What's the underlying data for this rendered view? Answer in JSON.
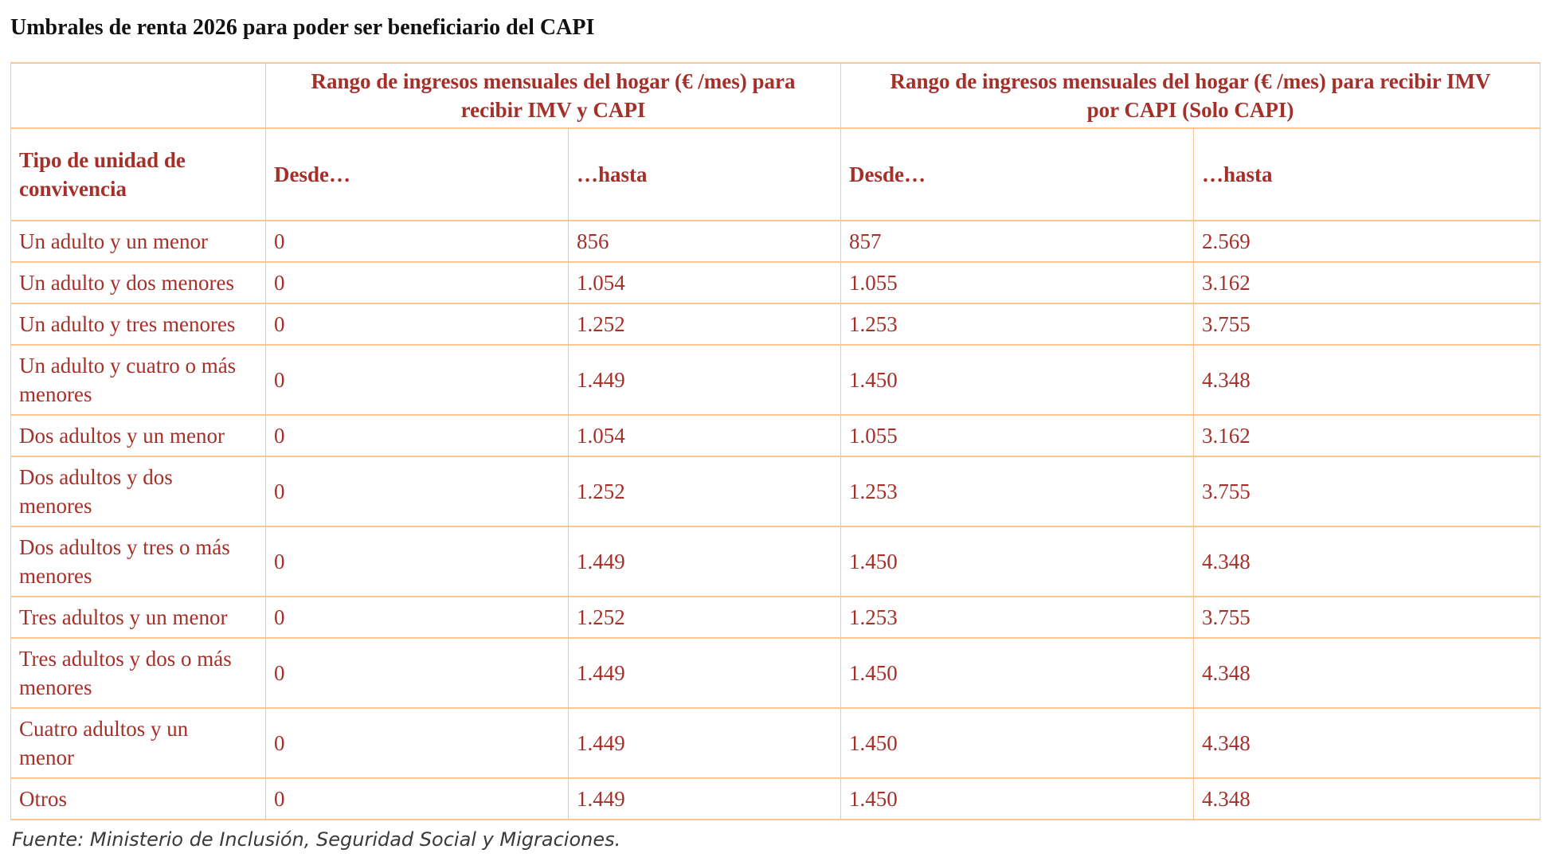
{
  "page": {
    "title": "Umbrales de renta 2026 para poder ser beneficiario del CAPI",
    "source_note": "Fuente: Ministerio de Inclusión, Seguridad Social y Migraciones."
  },
  "table": {
    "row_dimension_header": "Tipo de unidad de convivencia",
    "group_headers": {
      "imv_y_capi": "Rango de ingresos mensuales del hogar (€ /mes) para recibir IMV y CAPI",
      "solo_capi": "Rango de ingresos mensuales del hogar (€ /mes) para recibir IMV por CAPI (Solo CAPI)"
    },
    "sub_headers": {
      "desde_1": "Desde…",
      "hasta_1": "…hasta",
      "desde_2": "Desde…",
      "hasta_2": "…hasta"
    },
    "rows": [
      {
        "label": "Un adulto y un menor",
        "values": [
          "0",
          "856",
          "857",
          "2.569"
        ]
      },
      {
        "label": "Un adulto y dos menores",
        "values": [
          "0",
          "1.054",
          "1.055",
          "3.162"
        ]
      },
      {
        "label": "Un adulto y tres menores",
        "values": [
          "0",
          "1.252",
          "1.253",
          "3.755"
        ]
      },
      {
        "label": "Un adulto y cuatro o más menores",
        "values": [
          "0",
          "1.449",
          "1.450",
          "4.348"
        ]
      },
      {
        "label": "Dos adultos y un menor",
        "values": [
          "0",
          "1.054",
          "1.055",
          "3.162"
        ]
      },
      {
        "label": "Dos adultos y dos menores",
        "values": [
          "0",
          "1.252",
          "1.253",
          "3.755"
        ]
      },
      {
        "label": "Dos adultos y tres o más menores",
        "values": [
          "0",
          "1.449",
          "1.450",
          "4.348"
        ]
      },
      {
        "label": "Tres adultos y un menor",
        "values": [
          "0",
          "1.252",
          "1.253",
          "3.755"
        ]
      },
      {
        "label": "Tres adultos y dos o más menores",
        "values": [
          "0",
          "1.449",
          "1.450",
          "4.348"
        ]
      },
      {
        "label": "Cuatro adultos y un menor",
        "values": [
          "0",
          "1.449",
          "1.450",
          "4.348"
        ]
      },
      {
        "label": "Otros",
        "values": [
          "0",
          "1.449",
          "1.450",
          "4.348"
        ]
      }
    ]
  },
  "colors": {
    "text_red": "#a5302a",
    "border_peach": "#f9c794",
    "title_ink": "#111111",
    "note_gray": "#3a3a3a"
  }
}
